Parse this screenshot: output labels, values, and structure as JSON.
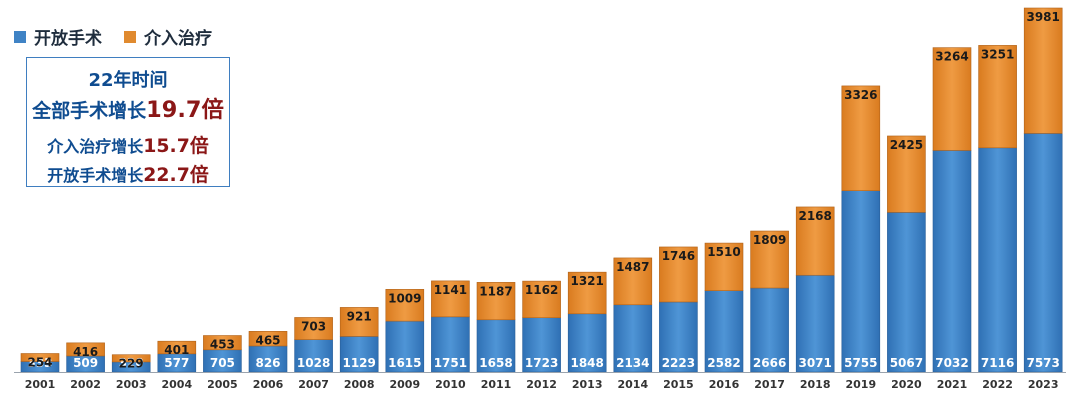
{
  "legend": [
    {
      "label": "开放手术",
      "color": "#3f83c5"
    },
    {
      "label": "介入治疗",
      "color": "#e08a2f"
    }
  ],
  "note": {
    "line1": "22年时间",
    "line2_prefix": "全部手术增长",
    "line2_value": "19.7倍",
    "line3_prefix": "介入治疗增长",
    "line3_value": "15.7倍",
    "line4_prefix": "开放手术增长",
    "line4_value": "22.7倍"
  },
  "chart_data": {
    "type": "bar",
    "stacked": true,
    "categories": [
      "2001",
      "2002",
      "2003",
      "2004",
      "2005",
      "2006",
      "2007",
      "2008",
      "2009",
      "2010",
      "2011",
      "2012",
      "2013",
      "2014",
      "2015",
      "2016",
      "2017",
      "2018",
      "2019",
      "2020",
      "2021",
      "2022",
      "2023"
    ],
    "series": [
      {
        "name": "开放手术",
        "color": "#3f83c5",
        "values": [
          333,
          509,
          320,
          577,
          705,
          826,
          1028,
          1129,
          1615,
          1751,
          1658,
          1723,
          1848,
          2134,
          2223,
          2582,
          2666,
          3071,
          5755,
          5067,
          7032,
          7116,
          7573
        ]
      },
      {
        "name": "介入治疗",
        "color": "#e08a2f",
        "values": [
          254,
          416,
          229,
          401,
          453,
          465,
          703,
          921,
          1009,
          1141,
          1187,
          1162,
          1321,
          1487,
          1746,
          1510,
          1809,
          2168,
          3326,
          2425,
          3264,
          3251,
          3981
        ]
      }
    ],
    "ylim": [
      0,
      11554
    ],
    "grid": false,
    "legend_position": "top-left"
  }
}
